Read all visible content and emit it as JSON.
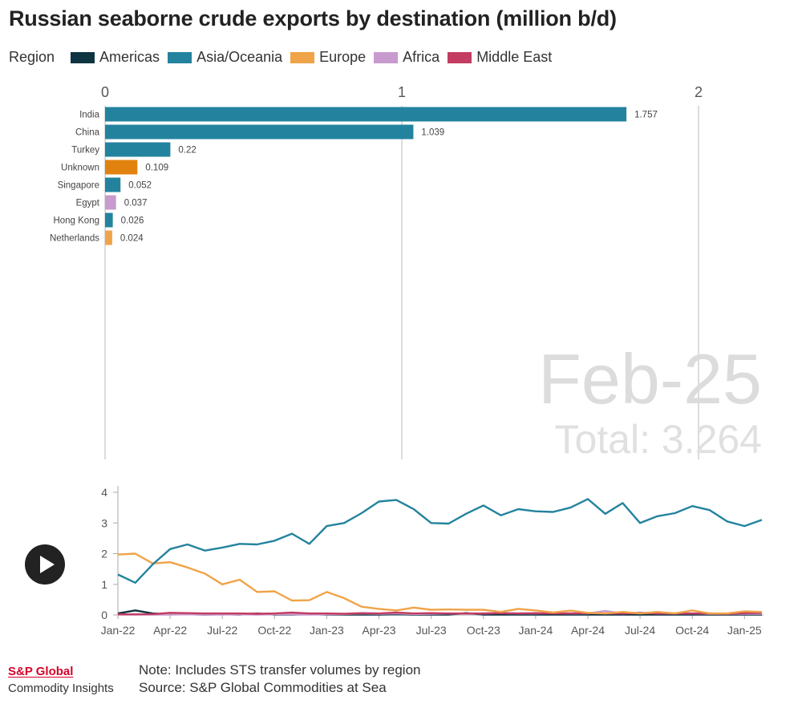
{
  "header": {
    "title": "Russian seaborne crude exports by destination (million b/d)"
  },
  "legend": {
    "title": "Region",
    "items": [
      {
        "label": "Americas",
        "color": "#0e3441"
      },
      {
        "label": "Asia/Oceania",
        "color": "#23839e"
      },
      {
        "label": "Europe",
        "color": "#f0a348"
      },
      {
        "label": "Africa",
        "color": "#c79bce"
      },
      {
        "label": "Middle East",
        "color": "#c33c62"
      }
    ]
  },
  "controls": {
    "play_icon": "play-icon"
  },
  "chart_data": [
    {
      "type": "bar",
      "orientation": "horizontal",
      "period": "Feb-25",
      "total_label": "Total: 3.264",
      "xlim": [
        0,
        2.2
      ],
      "x_ticks": [
        "0",
        "1",
        "2"
      ],
      "categories": [
        "India",
        "China",
        "Turkey",
        "Unknown",
        "Singapore",
        "Egypt",
        "Hong Kong",
        "Netherlands"
      ],
      "values": [
        1.757,
        1.039,
        0.22,
        0.109,
        0.052,
        0.037,
        0.026,
        0.024
      ],
      "value_labels": [
        "1.757",
        "1.039",
        "0.22",
        "0.109",
        "0.052",
        "0.037",
        "0.026",
        "0.024"
      ],
      "bar_regions": [
        "Asia/Oceania",
        "Asia/Oceania",
        "Asia/Oceania",
        "Unknown",
        "Asia/Oceania",
        "Africa",
        "Asia/Oceania",
        "Europe"
      ],
      "bar_colors": [
        "#23839e",
        "#23839e",
        "#23839e",
        "#e2820e",
        "#23839e",
        "#c79bce",
        "#23839e",
        "#f0a348"
      ],
      "grid": true
    },
    {
      "type": "line",
      "x": [
        "Jan-22",
        "Feb-22",
        "Mar-22",
        "Apr-22",
        "May-22",
        "Jun-22",
        "Jul-22",
        "Aug-22",
        "Sep-22",
        "Oct-22",
        "Nov-22",
        "Dec-22",
        "Jan-23",
        "Feb-23",
        "Mar-23",
        "Apr-23",
        "May-23",
        "Jun-23",
        "Jul-23",
        "Aug-23",
        "Sep-23",
        "Oct-23",
        "Nov-23",
        "Dec-23",
        "Jan-24",
        "Feb-24",
        "Mar-24",
        "Apr-24",
        "May-24",
        "Jun-24",
        "Jul-24",
        "Aug-24",
        "Sep-24",
        "Oct-24",
        "Nov-24",
        "Dec-24",
        "Jan-25",
        "Feb-25"
      ],
      "x_tick_labels": [
        "Jan-22",
        "Apr-22",
        "Jul-22",
        "Oct-22",
        "Jan-23",
        "Apr-23",
        "Jul-23",
        "Oct-23",
        "Jan-24",
        "Apr-24",
        "Jul-24",
        "Oct-24",
        "Jan-25"
      ],
      "ylim": [
        0,
        4
      ],
      "y_ticks": [
        "0",
        "1",
        "2",
        "3",
        "4"
      ],
      "series": [
        {
          "name": "Asia/Oceania",
          "color": "#23839e",
          "values": [
            1.32,
            1.05,
            1.65,
            2.15,
            2.3,
            2.1,
            2.2,
            2.32,
            2.3,
            2.42,
            2.65,
            2.32,
            2.9,
            3.0,
            3.32,
            3.7,
            3.75,
            3.45,
            3.0,
            2.98,
            3.3,
            3.57,
            3.25,
            3.45,
            3.38,
            3.36,
            3.5,
            3.78,
            3.3,
            3.65,
            3.0,
            3.22,
            3.32,
            3.55,
            3.42,
            3.05,
            2.9,
            3.1
          ]
        },
        {
          "name": "Europe",
          "color": "#f0a348",
          "values": [
            1.97,
            2.0,
            1.68,
            1.72,
            1.55,
            1.35,
            1.0,
            1.15,
            0.75,
            0.77,
            0.47,
            0.48,
            0.75,
            0.55,
            0.27,
            0.2,
            0.15,
            0.24,
            0.17,
            0.18,
            0.17,
            0.17,
            0.1,
            0.2,
            0.15,
            0.08,
            0.14,
            0.07,
            0.05,
            0.1,
            0.05,
            0.1,
            0.05,
            0.15,
            0.05,
            0.05,
            0.12,
            0.1
          ]
        },
        {
          "name": "Americas",
          "color": "#0e3441",
          "values": [
            0.05,
            0.15,
            0.05,
            0.02,
            0.02,
            0.01,
            0.02,
            0.01,
            0.05,
            0.01,
            0.01,
            0.02,
            0.01,
            0.01,
            0.01,
            0.01,
            0.02,
            0.01,
            0.01,
            0.01,
            0.06,
            0.01,
            0.01,
            0.01,
            0.01,
            0.01,
            0.01,
            0.01,
            0.01,
            0.01,
            0.01,
            0.01,
            0.01,
            0.01,
            0.01,
            0.01,
            0.01,
            0.01
          ]
        },
        {
          "name": "Africa",
          "color": "#c79bce",
          "values": [
            0.01,
            0.01,
            0.01,
            0.01,
            0.02,
            0.01,
            0.01,
            0.02,
            0.01,
            0.02,
            0.02,
            0.01,
            0.02,
            0.03,
            0.05,
            0.04,
            0.05,
            0.03,
            0.04,
            0.05,
            0.04,
            0.05,
            0.06,
            0.05,
            0.05,
            0.06,
            0.05,
            0.05,
            0.13,
            0.05,
            0.08,
            0.05,
            0.05,
            0.05,
            0.04,
            0.04,
            0.04,
            0.04
          ]
        },
        {
          "name": "Middle East",
          "color": "#c33c62",
          "values": [
            0.02,
            0.02,
            0.03,
            0.07,
            0.06,
            0.05,
            0.05,
            0.05,
            0.04,
            0.05,
            0.08,
            0.05,
            0.05,
            0.04,
            0.06,
            0.05,
            0.08,
            0.05,
            0.06,
            0.05,
            0.05,
            0.05,
            0.06,
            0.05,
            0.06,
            0.05,
            0.05,
            0.06,
            0.05,
            0.05,
            0.06,
            0.05,
            0.05,
            0.05,
            0.05,
            0.04,
            0.06,
            0.07
          ]
        }
      ],
      "grid": false
    }
  ],
  "footer": {
    "brand_name": "S&P Global",
    "brand_sub": "Commodity Insights",
    "note": "Note: Includes STS transfer volumes by region",
    "source": "Source: S&P Global Commodities at Sea"
  }
}
